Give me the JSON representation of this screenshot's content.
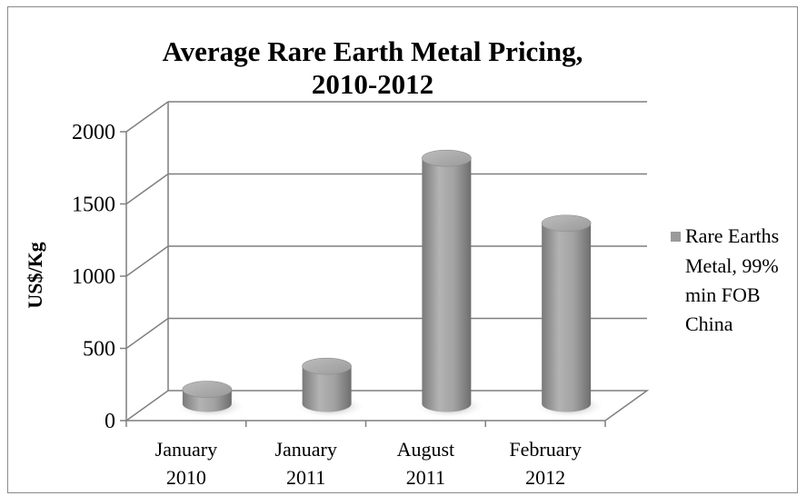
{
  "chart_data": {
    "type": "bar",
    "title": "Average Rare Earth Metal Pricing, 2010-2012",
    "title_lines": [
      "Average Rare Earth Metal Pricing,",
      "2010-2012"
    ],
    "xlabel": "",
    "ylabel": "US$/Kg",
    "ylim": [
      0,
      2000
    ],
    "yticks": [
      "0",
      "500",
      "1000",
      "1500",
      "2000"
    ],
    "categories": [
      "January 2010",
      "January 2011",
      "August 2011",
      "February 2012"
    ],
    "category_lines": [
      [
        "January",
        "2010"
      ],
      [
        "January",
        "2011"
      ],
      [
        "August",
        "2011"
      ],
      [
        "February",
        "2012"
      ]
    ],
    "series": [
      {
        "name": "Rare Earths Metal, 99% min FOB China",
        "values": [
          100,
          260,
          1700,
          1250
        ]
      }
    ],
    "legend": {
      "position": "right",
      "lines": [
        "Rare Earths",
        "Metal, 99%",
        "min FOB",
        "China"
      ]
    },
    "grid": true,
    "style": "3d-cylinder",
    "colors": {
      "bar": "#9a9a9a",
      "grid": "#7f7f7f",
      "legend_marker": "#9a9a9a"
    }
  }
}
